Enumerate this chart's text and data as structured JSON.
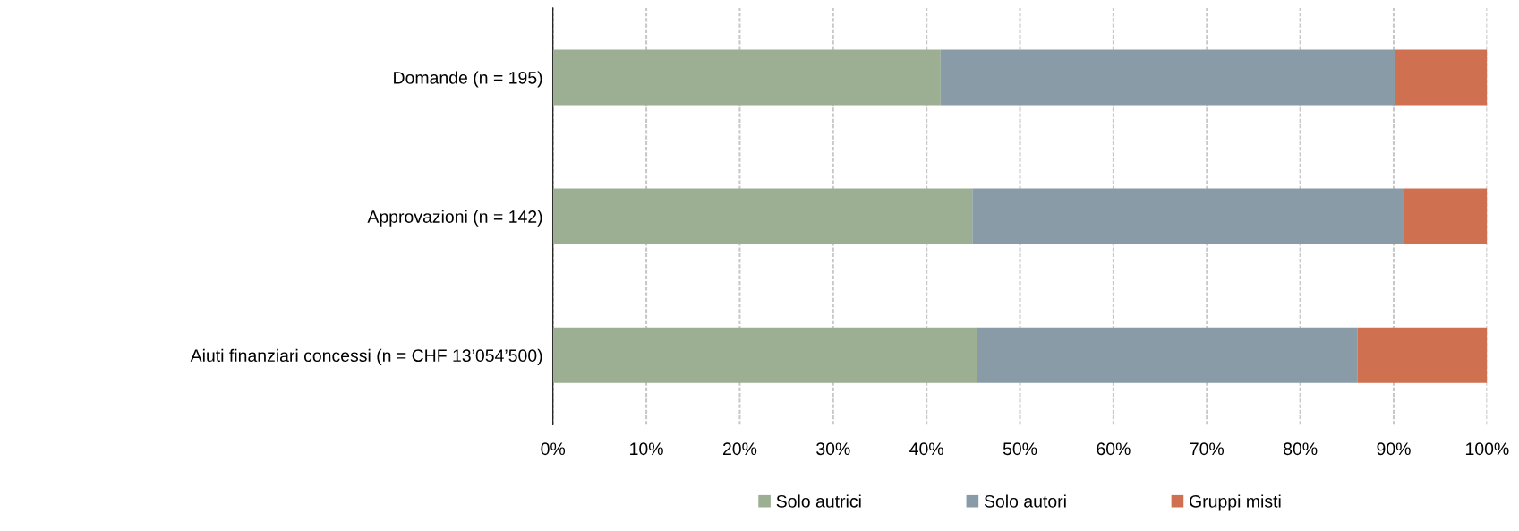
{
  "chart_data": {
    "type": "bar",
    "orientation": "horizontal",
    "stacked": true,
    "categories": [
      "Domande (n = 195)",
      "Approvazioni (n = 142)",
      "Aiuti finanziari concessi (n = CHF 13’054’500)"
    ],
    "series": [
      {
        "name": "Solo autrici",
        "color": "#9caf93",
        "values": [
          41.5,
          44.9,
          45.4
        ]
      },
      {
        "name": "Solo autori",
        "color": "#889ba6",
        "values": [
          48.6,
          46.2,
          40.7
        ]
      },
      {
        "name": "Gruppi misti",
        "color": "#cf7050",
        "values": [
          9.9,
          8.9,
          13.9
        ]
      }
    ],
    "xlim": [
      0,
      100
    ],
    "xticks": [
      {
        "value": 0,
        "label": "0%"
      },
      {
        "value": 10,
        "label": "10%"
      },
      {
        "value": 20,
        "label": "20%"
      },
      {
        "value": 30,
        "label": "30%"
      },
      {
        "value": 40,
        "label": "40%"
      },
      {
        "value": 50,
        "label": "50%"
      },
      {
        "value": 60,
        "label": "60%"
      },
      {
        "value": 70,
        "label": "70%"
      },
      {
        "value": 80,
        "label": "80%"
      },
      {
        "value": 90,
        "label": "90%"
      },
      {
        "value": 100,
        "label": "100%"
      }
    ],
    "grid": "x",
    "legend": "bottom"
  }
}
